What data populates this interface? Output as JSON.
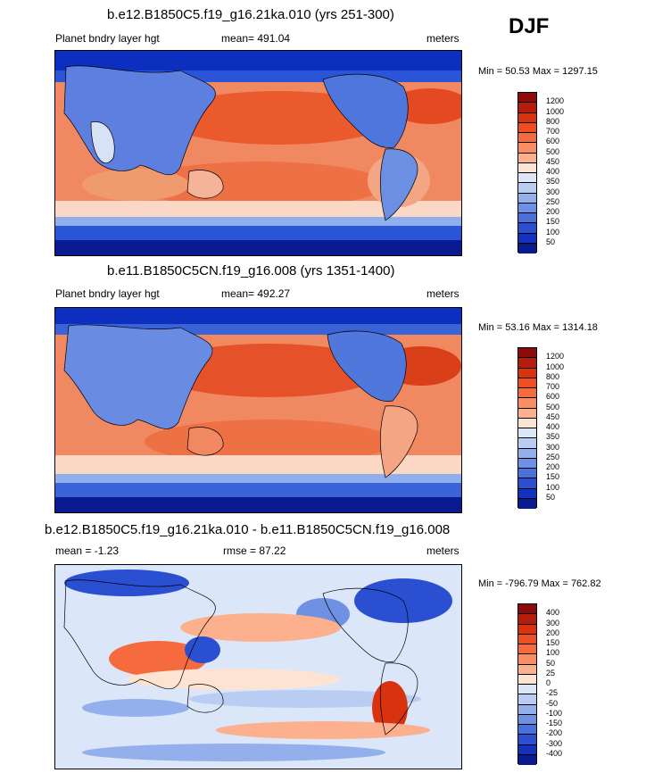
{
  "season": "DJF",
  "panels": [
    {
      "title": "b.e12.B1850C5.f19_g16.21ka.010 (yrs 251-300)",
      "left_label": "Planet bndry layer hgt",
      "center_label": "mean= 491.04",
      "right_label": "meters",
      "minmax": "Min =  50.53 Max = 1297.15",
      "levels": [
        "1200",
        "1000",
        "800",
        "700",
        "600",
        "500",
        "450",
        "400",
        "350",
        "300",
        "250",
        "200",
        "150",
        "100",
        "50"
      ],
      "colors": [
        "#8e0b0b",
        "#b51c0c",
        "#d8320f",
        "#ef4e22",
        "#f66b3d",
        "#fa8d63",
        "#fcb08d",
        "#fde3d2",
        "#dbe6f8",
        "#b9cdf3",
        "#93b0ec",
        "#6f91e4",
        "#4a70dc",
        "#2a4fd1",
        "#1331bf",
        "#0a1a8f"
      ]
    },
    {
      "title": "b.e11.B1850C5CN.f19_g16.008 (yrs 1351-1400)",
      "left_label": "Planet bndry layer hgt",
      "center_label": "mean= 492.27",
      "right_label": "meters",
      "minmax": "Min =  53.16 Max = 1314.18",
      "levels": [
        "1200",
        "1000",
        "800",
        "700",
        "600",
        "500",
        "450",
        "400",
        "350",
        "300",
        "250",
        "200",
        "150",
        "100",
        "50"
      ],
      "colors": [
        "#8e0b0b",
        "#b51c0c",
        "#d8320f",
        "#ef4e22",
        "#f66b3d",
        "#fa8d63",
        "#fcb08d",
        "#fde3d2",
        "#dbe6f8",
        "#b9cdf3",
        "#93b0ec",
        "#6f91e4",
        "#4a70dc",
        "#2a4fd1",
        "#1331bf",
        "#0a1a8f"
      ]
    },
    {
      "title": "b.e12.B1850C5.f19_g16.21ka.010 - b.e11.B1850C5CN.f19_g16.008",
      "left_label": "mean =  -1.23",
      "center_label": "rmse =  87.22",
      "right_label": "meters",
      "minmax": "Min = -796.79 Max = 762.82",
      "levels": [
        "400",
        "300",
        "200",
        "150",
        "100",
        "50",
        "25",
        "0",
        "-25",
        "-50",
        "-100",
        "-150",
        "-200",
        "-300",
        "-400"
      ],
      "colors": [
        "#8e0b0b",
        "#b51c0c",
        "#d8320f",
        "#ef4e22",
        "#f66b3d",
        "#fa8d63",
        "#fcb08d",
        "#fde3d2",
        "#dbe6f8",
        "#b9cdf3",
        "#93b0ec",
        "#6f91e4",
        "#4a70dc",
        "#2a4fd1",
        "#1331bf",
        "#0a1a8f"
      ]
    }
  ]
}
